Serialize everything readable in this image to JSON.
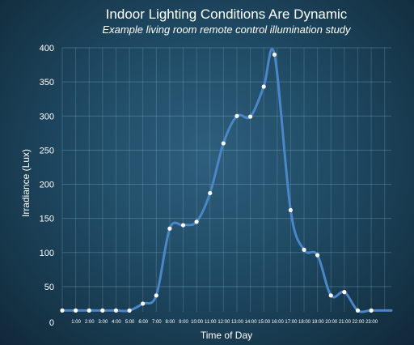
{
  "chart_data": {
    "type": "line",
    "title": "Indoor Lighting Conditions Are Dynamic",
    "subtitle": "Example living room remote control illumination study",
    "xlabel": "Time of Day",
    "ylabel": "Irradiance (Lux)",
    "xlim": [
      0,
      24.5
    ],
    "ylim": [
      0,
      400
    ],
    "y_ticks": [
      0,
      50,
      100,
      150,
      200,
      250,
      300,
      350,
      400
    ],
    "x_ticks": [
      {
        "x": 1,
        "label": "1:00"
      },
      {
        "x": 2,
        "label": "2:00"
      },
      {
        "x": 3,
        "label": "3:00"
      },
      {
        "x": 4,
        "label": "4:00"
      },
      {
        "x": 5,
        "label": "5:00"
      },
      {
        "x": 6,
        "label": "6:00"
      },
      {
        "x": 7,
        "label": "7:00"
      },
      {
        "x": 8,
        "label": "8:00"
      },
      {
        "x": 9,
        "label": "9:00"
      },
      {
        "x": 10,
        "label": "10:00"
      },
      {
        "x": 11,
        "label": "11:00"
      },
      {
        "x": 12,
        "label": "12:00"
      },
      {
        "x": 13,
        "label": "13:00"
      },
      {
        "x": 14,
        "label": "14:00"
      },
      {
        "x": 15,
        "label": "15:00"
      },
      {
        "x": 16,
        "label": "16:00"
      },
      {
        "x": 17,
        "label": "17:00"
      },
      {
        "x": 18,
        "label": "18:00"
      },
      {
        "x": 19,
        "label": "19:00"
      },
      {
        "x": 20,
        "label": "20:00"
      },
      {
        "x": 21,
        "label": "21:00"
      },
      {
        "x": 22,
        "label": "22:00"
      },
      {
        "x": 23,
        "label": "23:00"
      }
    ],
    "grid": true,
    "line_color": "#4a86c8",
    "marker_color": "#ffffff",
    "series": [
      {
        "x": [
          0,
          1,
          2,
          3,
          4,
          5,
          6,
          7,
          8,
          9,
          10,
          11,
          12,
          13,
          14,
          15,
          15.8,
          17,
          18,
          19,
          20,
          21,
          22,
          23,
          24.5
        ],
        "y": [
          15,
          15,
          15,
          15,
          15,
          15,
          25,
          37,
          135,
          140,
          145,
          187,
          260,
          300,
          299,
          343,
          390,
          162,
          104,
          96,
          37,
          42,
          15,
          15,
          15
        ],
        "markers": [
          true,
          true,
          true,
          true,
          true,
          true,
          true,
          true,
          true,
          true,
          true,
          true,
          true,
          true,
          true,
          true,
          true,
          true,
          true,
          true,
          true,
          true,
          true,
          true,
          false
        ]
      }
    ]
  }
}
